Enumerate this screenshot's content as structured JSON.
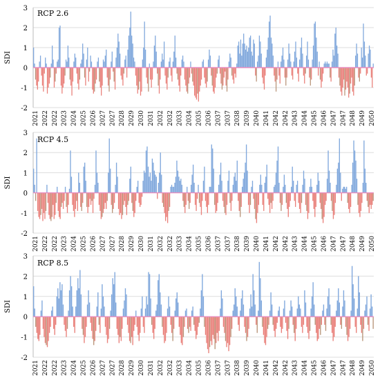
{
  "figure": {
    "panel_colors": {
      "positive": "#7fa7dc",
      "negative": "#e9807a",
      "negative_alt": "#b9957a",
      "grid": "#dddddd",
      "zero_line": "#e88ec0",
      "axis_text": "#000000"
    }
  },
  "chart_data": [
    {
      "type": "bar",
      "title": "RCP 2.6",
      "xlabel": "",
      "ylabel": "SDI",
      "ylim": [
        -2,
        3
      ],
      "yticks": [
        -2,
        -1,
        0,
        1,
        2,
        3
      ],
      "xticks": [
        "2021",
        "2022",
        "2022",
        "2023",
        "2024",
        "2025",
        "2026",
        "2027",
        "2027",
        "2028",
        "2029",
        "2030",
        "2031",
        "2032",
        "2032",
        "2033",
        "2034",
        "2035",
        "2036",
        "2037",
        "2037",
        "2038",
        "2039",
        "2040",
        "2041",
        "2042",
        "2042",
        "2043",
        "2044",
        "2045",
        "2046",
        "2047",
        "2047",
        "2048",
        "2049",
        "2050"
      ],
      "grid": true,
      "x_start": 2021,
      "x_end": 2051,
      "months_per_year": 12,
      "values": [
        1.0,
        0.2,
        -0.6,
        -0.9,
        -1.1,
        -0.7,
        0.3,
        0.6,
        -0.4,
        -0.9,
        -1.2,
        -0.3,
        0.5,
        0.2,
        -1.3,
        -1.0,
        -0.8,
        -0.5,
        0.2,
        1.1,
        0.4,
        -1.0,
        -0.7,
        -0.3,
        0.3,
        0.4,
        2.0,
        2.1,
        -0.9,
        -1.3,
        -1.0,
        -0.8,
        -0.4,
        0.4,
        0.3,
        1.1,
        0.5,
        -0.6,
        -0.9,
        -1.4,
        -0.7,
        0.3,
        0.7,
        0.5,
        -0.3,
        -0.8,
        -1.1,
        -0.6,
        0.2,
        0.4,
        1.2,
        0.7,
        -0.5,
        -0.9,
        0.4,
        1.0,
        -0.7,
        -0.2,
        0.6,
        0.3,
        -1.1,
        -1.3,
        -1.2,
        -0.8,
        -0.6,
        0.3,
        0.5,
        -0.7,
        -1.0,
        -1.4,
        -0.9,
        0.4,
        0.3,
        0.6,
        0.9,
        -0.5,
        -0.9,
        -1.2,
        -0.6,
        0.3,
        0.8,
        -0.2,
        -0.7,
        -1.1,
        0.5,
        1.0,
        1.7,
        1.3,
        0.7,
        -0.4,
        -0.6,
        -0.9,
        -0.3,
        0.4,
        0.6,
        -0.5,
        0.9,
        1.6,
        2.0,
        2.8,
        1.6,
        1.2,
        0.5,
        0.3,
        -0.4,
        -0.9,
        -1.3,
        -1.1,
        -0.7,
        -1.4,
        -1.2,
        0.4,
        1.0,
        2.3,
        0.9,
        -0.5,
        -0.8,
        -1.2,
        0.2,
        -0.6,
        -1.0,
        -0.6,
        0.3,
        1.1,
        1.6,
        0.8,
        -0.3,
        -0.9,
        -1.3,
        -0.6,
        0.3,
        0.7,
        0.4,
        1.3,
        -0.4,
        -0.8,
        -1.1,
        -0.5,
        0.3,
        0.5,
        -0.4,
        -0.7,
        0.3,
        0.8,
        1.6,
        0.5,
        -0.3,
        -0.6,
        -0.9,
        -1.2,
        -0.4,
        0.4,
        0.6,
        0.3,
        -0.6,
        -0.9,
        -1.2,
        -1.3,
        -0.8,
        -0.5,
        0.3,
        -0.3,
        -0.7,
        -0.9,
        -1.4,
        -1.5,
        -1.6,
        -1.3,
        -1.7,
        -1.2,
        -0.9,
        -0.6,
        0.3,
        0.4,
        -0.5,
        -0.8,
        -1.0,
        -0.7,
        0.4,
        0.9,
        0.6,
        -0.4,
        -0.9,
        -1.2,
        -1.3,
        -1.0,
        -0.5,
        -0.3,
        0.4,
        0.6,
        -0.3,
        -0.8,
        -1.1,
        -0.9,
        -0.5,
        -0.2,
        -0.9,
        -1.2,
        -0.6,
        0.3,
        0.7,
        0.5,
        -0.4,
        -0.6,
        -0.8,
        -0.3,
        -0.5,
        0.2,
        1.1,
        1.3,
        0.7,
        1.4,
        0.6,
        1.2,
        1.7,
        1.2,
        0.9,
        1.1,
        0.8,
        1.0,
        1.5,
        1.6,
        0.8,
        0.6,
        1.4,
        1.2,
        -0.4,
        -0.7,
        0.3,
        0.6,
        1.6,
        1.3,
        0.7,
        -0.5,
        -0.8,
        -1.1,
        -0.4,
        0.5,
        0.9,
        1.5,
        2.3,
        2.6,
        1.5,
        1.2,
        0.6,
        -0.4,
        -0.7,
        -1.2,
        -0.6,
        0.3,
        -0.4,
        -0.8,
        0.3,
        0.6,
        1.0,
        0.4,
        -0.5,
        -0.9,
        -0.5,
        0.4,
        1.2,
        0.7,
        0.3,
        -0.4,
        -0.6,
        0.3,
        0.8,
        1.3,
        0.5,
        -0.3,
        -0.7,
        0.4,
        1.0,
        1.5,
        0.7,
        -0.4,
        -0.8,
        -0.3,
        0.6,
        1.3,
        0.4,
        -0.5,
        -0.9,
        -0.6,
        0.4,
        1.1,
        2.2,
        2.3,
        1.5,
        0.8,
        -0.4,
        0.3,
        -0.6,
        -1.0,
        -0.7,
        -0.3,
        0.2,
        0.3,
        0.2,
        0.3,
        0.2,
        0.2,
        -0.5,
        -0.7,
        0.3,
        0.9,
        0.6,
        1.7,
        2.0,
        1.1,
        0.7,
        -0.5,
        -0.9,
        -1.2,
        -1.4,
        -1.0,
        -0.6,
        -1.4,
        -1.1,
        -0.7,
        -1.0,
        -1.5,
        -1.3,
        -0.8,
        -0.5,
        -1.2,
        -1.4,
        -0.9,
        0.6,
        1.2,
        0.7,
        -0.5,
        -0.7,
        -0.3,
        1.0,
        0.5,
        2.2,
        1.3,
        0.6,
        -0.4,
        -0.3,
        0.7,
        1.1,
        0.9,
        -0.5,
        -1.0,
        0.2
      ]
    },
    {
      "type": "bar",
      "title": "RCP 4.5",
      "xlabel": "",
      "ylabel": "SDI",
      "ylim": [
        -2,
        3
      ],
      "yticks": [
        -2,
        -1,
        0,
        1,
        2,
        3
      ],
      "xticks": [
        "2021",
        "2022",
        "2022",
        "2023",
        "2024",
        "2025",
        "2026",
        "2027",
        "2027",
        "2028",
        "2029",
        "2030",
        "2031",
        "2032",
        "2032",
        "2033",
        "2034",
        "2035",
        "2036",
        "2037",
        "2037",
        "2038",
        "2039",
        "2040",
        "2041",
        "2042",
        "2042",
        "2043",
        "2044",
        "2045",
        "2046",
        "2047",
        "2047",
        "2048",
        "2049",
        "2050"
      ],
      "grid": true,
      "x_start": 2021,
      "x_end": 2051,
      "months_per_year": 12,
      "values": [
        1.2,
        0.4,
        -0.4,
        2.7,
        -0.9,
        -1.2,
        -1.3,
        -1.1,
        -0.8,
        -1.4,
        -1.0,
        -1.3,
        -0.9,
        0.4,
        -0.5,
        -1.1,
        -1.3,
        -1.4,
        -1.2,
        -0.6,
        -1.3,
        -1.1,
        -0.5,
        0.3,
        -0.9,
        -1.2,
        -1.3,
        -0.7,
        -0.5,
        -0.8,
        -0.4,
        0.3,
        -0.7,
        -1.0,
        -0.6,
        0.2,
        2.1,
        0.8,
        -0.6,
        -0.9,
        -1.2,
        -0.8,
        -0.4,
        -0.9,
        1.0,
        0.5,
        -0.7,
        -0.9,
        -0.5,
        1.3,
        1.5,
        0.6,
        -0.7,
        -1.0,
        -0.7,
        -0.3,
        -0.6,
        -0.4,
        -1.0,
        -0.3,
        0.4,
        2.1,
        1.0,
        0.5,
        -0.6,
        -0.9,
        -1.3,
        -1.2,
        -1.0,
        -0.8,
        -0.5,
        -0.8,
        -0.4,
        1.0,
        2.7,
        1.2,
        -0.6,
        -1.0,
        -0.8,
        -0.5,
        0.4,
        1.5,
        0.8,
        -0.8,
        -1.1,
        -1.0,
        -1.3,
        -1.1,
        -0.6,
        -0.4,
        -0.7,
        -1.1,
        -0.6,
        -0.4,
        0.7,
        1.3,
        -0.5,
        -0.9,
        -1.2,
        -1.0,
        -0.4,
        0.3,
        0.6,
        -0.5,
        -0.7,
        -0.6,
        -0.2,
        0.6,
        1.1,
        1.0,
        2.1,
        2.3,
        1.3,
        0.8,
        1.0,
        0.6,
        1.7,
        1.5,
        1.1,
        0.9,
        0.8,
        -0.3,
        0.5,
        1.0,
        2.0,
        0.9,
        -0.5,
        -0.7,
        -1.0,
        -1.4,
        -1.2,
        -1.5,
        -0.9,
        -0.7,
        0.3,
        0.4,
        0.3,
        0.3,
        0.5,
        0.8,
        1.6,
        1.1,
        0.8,
        0.6,
        0.7,
        0.4,
        -0.4,
        -0.7,
        -1.0,
        -0.6,
        0.3,
        -0.4,
        -0.8,
        -0.5,
        0.4,
        0.9,
        1.4,
        0.5,
        -0.6,
        -0.9,
        -0.3,
        0.4,
        -0.5,
        -0.7,
        -1.1,
        -0.4,
        0.6,
        1.3,
        -0.4,
        -0.7,
        -1.0,
        -0.6,
        0.3,
        0.3,
        2.4,
        2.2,
        1.2,
        -0.6,
        -1.0,
        -0.9,
        -0.5,
        0.4,
        0.9,
        1.5,
        0.6,
        -0.4,
        -0.7,
        -1.0,
        -1.1,
        -0.6,
        0.6,
        1.1,
        -0.5,
        -0.9,
        -0.4,
        0.4,
        0.8,
        1.0,
        0.6,
        1.6,
        -0.4,
        -0.9,
        -1.2,
        -0.7,
        0.3,
        0.7,
        1.0,
        1.5,
        2.4,
        1.1,
        -0.6,
        -1.0,
        -0.6,
        0.3,
        0.6,
        -0.3,
        -0.8,
        -1.3,
        -1.5,
        -1.0,
        -0.6,
        0.4,
        0.9,
        0.4,
        -0.6,
        -0.9,
        0.5,
        0.8,
        1.4,
        -0.3,
        -0.6,
        -1.0,
        -0.5,
        -0.8,
        -0.4,
        0.3,
        0.4,
        1.0,
        1.6,
        2.3,
        0.5,
        -0.5,
        -0.9,
        -0.6,
        0.3,
        0.9,
        0.4,
        -0.5,
        -0.8,
        -1.2,
        -0.7,
        -0.4,
        0.3,
        1.3,
        0.6,
        -0.4,
        -0.7,
        0.4,
        0.6,
        -0.5,
        -0.8,
        -1.0,
        -0.5,
        0.4,
        1.1,
        0.7,
        -0.6,
        -0.9,
        -1.3,
        -1.0,
        0.3,
        0.7,
        0.3,
        -0.4,
        -0.8,
        -1.2,
        -0.7,
        0.4,
        1.0,
        0.6,
        -0.5,
        -0.8,
        -1.3,
        -1.5,
        -1.2,
        -0.6,
        -0.4,
        0.7,
        2.1,
        1.1,
        0.5,
        -0.4,
        -0.9,
        -1.3,
        -1.1,
        -0.5,
        0.4,
        1.2,
        1.5,
        2.7,
        1.0,
        -0.4,
        0.2,
        0.3,
        0.3,
        0.2,
        0.3,
        -0.5,
        -0.8,
        -1.0,
        -0.7,
        0.4,
        1.5,
        2.6,
        2.1,
        1.6,
        0.7,
        -0.6,
        -1.0,
        -1.2,
        -0.9,
        -0.5,
        0.5,
        2.6,
        1.2,
        0.5,
        -0.4,
        -0.7,
        -1.0,
        -0.6,
        -0.8,
        -0.6,
        -0.4
      ]
    },
    {
      "type": "bar",
      "title": "RCP 8.5",
      "xlabel": "",
      "ylabel": "SDI",
      "ylim": [
        -2,
        3
      ],
      "yticks": [
        -2,
        -1,
        0,
        1,
        2,
        3
      ],
      "xticks": [
        "2021",
        "2022",
        "2022",
        "2023",
        "2024",
        "2025",
        "2026",
        "2027",
        "2027",
        "2028",
        "2029",
        "2030",
        "2031",
        "2032",
        "2032",
        "2033",
        "2034",
        "2035",
        "2036",
        "2037",
        "2037",
        "2038",
        "2039",
        "2040",
        "2041",
        "2042",
        "2042",
        "2043",
        "2044",
        "2045",
        "2046",
        "2047",
        "2047",
        "2048",
        "2049",
        "2050"
      ],
      "grid": true,
      "x_start": 2021,
      "x_end": 2051,
      "months_per_year": 12,
      "values": [
        1.5,
        0.4,
        -0.5,
        -0.8,
        -1.1,
        -1.2,
        -0.9,
        0.3,
        0.8,
        -0.6,
        -1.0,
        -1.3,
        -1.4,
        -1.5,
        -1.2,
        -0.8,
        -0.5,
        0.3,
        0.5,
        -0.6,
        -0.9,
        -0.4,
        1.0,
        1.4,
        0.9,
        1.7,
        1.3,
        1.6,
        0.6,
        -0.4,
        -0.7,
        -1.0,
        -0.6,
        0.3,
        1.3,
        2.0,
        1.5,
        0.5,
        -0.5,
        -0.8,
        0.5,
        1.3,
        1.9,
        1.4,
        2.3,
        1.1,
        -0.6,
        -0.9,
        -1.3,
        -1.0,
        -0.5,
        0.6,
        1.3,
        0.7,
        -0.3,
        -0.7,
        -1.1,
        -1.4,
        -1.2,
        -0.7,
        0.5,
        1.2,
        -0.4,
        -0.8,
        0.4,
        1.6,
        1.0,
        0.5,
        -0.5,
        -0.9,
        -1.3,
        -1.1,
        -0.6,
        0.3,
        1.1,
        1.9,
        1.6,
        2.2,
        0.7,
        -0.6,
        -0.9,
        -1.3,
        -1.0,
        -1.2,
        -0.6,
        0.4,
        0.8,
        1.4,
        1.1,
        -0.4,
        -0.8,
        -1.2,
        -1.3,
        -1.0,
        -1.4,
        -0.7,
        -0.4,
        0.3,
        -0.5,
        -0.9,
        -1.2,
        -0.8,
        0.4,
        1.0,
        -0.5,
        -0.8,
        0.4,
        1.0,
        0.6,
        2.2,
        2.1,
        0.9,
        -0.4,
        -0.8,
        -1.1,
        -0.6,
        0.3,
        0.6,
        1.8,
        2.1,
        1.2,
        0.6,
        -0.5,
        -0.9,
        -1.3,
        -1.2,
        -0.8,
        0.4,
        1.0,
        0.5,
        -0.4,
        -0.8,
        -1.2,
        -0.6,
        0.3,
        0.9,
        1.2,
        0.7,
        -0.5,
        -0.9,
        -1.3,
        -1.4,
        -1.0,
        -0.5,
        0.3,
        0.4,
        -0.6,
        -0.8,
        -0.5,
        -0.7,
        0.3,
        0.5,
        -0.4,
        -0.7,
        -1.1,
        -0.9,
        -0.5,
        -0.3,
        0.4,
        1.3,
        2.1,
        1.0,
        -0.5,
        -0.9,
        -1.3,
        -1.6,
        -1.8,
        -1.5,
        -1.2,
        -1.4,
        -0.9,
        -1.1,
        -1.6,
        -1.3,
        -0.8,
        -1.2,
        -0.7,
        0.4,
        1.3,
        0.9,
        -0.5,
        -0.8,
        -1.2,
        -1.5,
        -1.3,
        -1.7,
        -1.4,
        -1.0,
        -0.6,
        0.3,
        0.6,
        1.4,
        1.0,
        0.5,
        -0.4,
        -0.7,
        0.3,
        0.9,
        1.3,
        0.6,
        -0.5,
        -0.8,
        -1.2,
        -1.0,
        -0.6,
        0.4,
        1.1,
        0.5,
        2.1,
        1.3,
        0.6,
        -0.4,
        -0.8,
        0.3,
        2.7,
        1.9,
        0.8,
        -0.5,
        -0.9,
        -1.3,
        -1.4,
        -1.0,
        -0.6,
        -0.4,
        0.3,
        1.2,
        0.6,
        -0.4,
        -0.7,
        -1.0,
        -0.6,
        -0.3,
        0.3,
        0.5,
        -0.5,
        -0.8,
        -0.6,
        0.4,
        0.8,
        -0.3,
        -0.7,
        -1.1,
        -0.6,
        0.3,
        0.8,
        0.5,
        -0.4,
        -0.8,
        -1.2,
        -0.6,
        0.4,
        1.0,
        0.6,
        0.4,
        -0.5,
        -0.8,
        -0.4,
        1.3,
        0.7,
        -0.5,
        -0.8,
        -1.1,
        -0.7,
        0.4,
        1.0,
        1.7,
        0.6,
        -0.4,
        -0.8,
        -1.2,
        -1.1,
        -0.6,
        -0.9,
        -0.4,
        0.3,
        0.6,
        -0.4,
        -0.7,
        0.4,
        1.0,
        1.4,
        0.6,
        -0.4,
        -0.8,
        -1.2,
        -1.0,
        -0.5,
        0.3,
        0.8,
        1.4,
        0.7,
        -0.4,
        -0.6,
        0.5,
        1.3,
        0.8,
        -0.5,
        -0.9,
        -1.2,
        -1.0,
        -0.6,
        0.3,
        2.5,
        1.6,
        0.9,
        -0.5,
        -0.8,
        0.4,
        2.0,
        1.2,
        -0.4,
        -0.8,
        -1.2,
        -0.6,
        0.3,
        0.6,
        1.0,
        -0.4,
        -0.7,
        0.4,
        1.1,
        0.5,
        -0.6
      ]
    }
  ]
}
